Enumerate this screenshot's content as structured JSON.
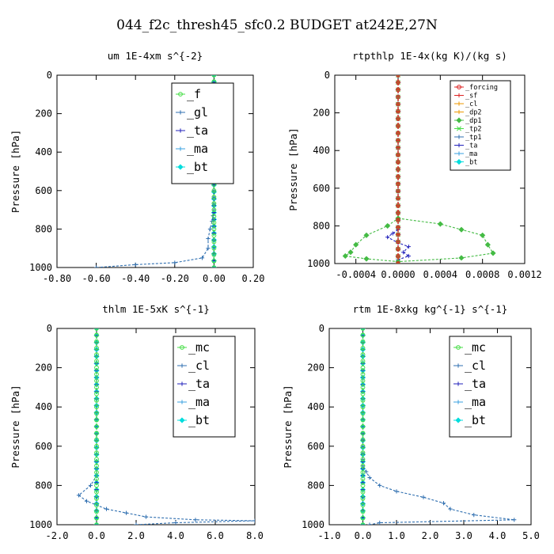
{
  "figure_title": "044_f2c_thresh45_sfc0.2  BUDGET at242E,27N",
  "chart_data": [
    {
      "type": "line",
      "title": "um  1E-4xm s^{-2}",
      "ylabel": "Pressure [hPa]",
      "xlim": [
        -0.8,
        0.2
      ],
      "ylim": [
        1000,
        0
      ],
      "xticks": [
        "-0.80",
        "-0.60",
        "-0.40",
        "-0.20",
        "0.00",
        "0.20"
      ],
      "yticks": [
        "0",
        "200",
        "400",
        "600",
        "800",
        "1000"
      ],
      "legend_position": "top-right",
      "legend_size": "large",
      "series": [
        {
          "name": "_f",
          "color": "#44dd44",
          "points": [
            [
              0.0,
              0
            ],
            [
              0.0,
              100
            ],
            [
              0.0,
              200
            ],
            [
              0.0,
              300
            ],
            [
              0.0,
              400
            ],
            [
              0.0,
              500
            ],
            [
              0.0,
              600
            ],
            [
              0.0,
              700
            ],
            [
              0.0,
              800
            ],
            [
              0.0,
              900
            ],
            [
              0.0,
              1000
            ]
          ]
        },
        {
          "name": "_gl",
          "color": "#2f6fb0",
          "points": [
            [
              0.0,
              0
            ],
            [
              0.0,
              200
            ],
            [
              0.0,
              400
            ],
            [
              0.0,
              600
            ],
            [
              0.0,
              700
            ],
            [
              -0.01,
              760
            ],
            [
              -0.02,
              800
            ],
            [
              -0.03,
              850
            ],
            [
              -0.03,
              900
            ],
            [
              -0.06,
              950
            ],
            [
              -0.2,
              975
            ],
            [
              -0.4,
              985
            ],
            [
              -0.6,
              1000
            ]
          ]
        },
        {
          "name": "_ta",
          "color": "#2222bb",
          "points": [
            [
              0.0,
              0
            ],
            [
              0.0,
              500
            ],
            [
              0.0,
              1000
            ]
          ]
        },
        {
          "name": "_ma",
          "color": "#3aa0e0",
          "points": [
            [
              0.0,
              0
            ],
            [
              0.0,
              500
            ],
            [
              0.0,
              1000
            ]
          ]
        },
        {
          "name": "_bt",
          "color": "#00dddd",
          "points": [
            [
              0.0,
              0
            ],
            [
              0.0,
              500
            ],
            [
              0.0,
              1000
            ]
          ]
        }
      ]
    },
    {
      "type": "line",
      "title": "rtpthlp  1E-4x(kg K)/(kg s)",
      "ylabel": "Pressure [hPa]",
      "xlim": [
        -0.0006,
        0.0012
      ],
      "ylim": [
        1000,
        0
      ],
      "xticks": [
        "-0.0004",
        "0.0000",
        "0.0004",
        "0.0008",
        "0.0012"
      ],
      "yticks": [
        "0",
        "200",
        "400",
        "600",
        "800",
        "1000"
      ],
      "legend_position": "top-right",
      "legend_size": "small",
      "series": [
        {
          "name": "_forcing",
          "color": "#dd2222",
          "points": [
            [
              0.0,
              0
            ],
            [
              0.0,
              500
            ],
            [
              0.0,
              1000
            ]
          ]
        },
        {
          "name": "_sf",
          "color": "#dd2222",
          "points": [
            [
              0.0,
              0
            ],
            [
              0.0,
              1000
            ]
          ]
        },
        {
          "name": "_cl",
          "color": "#ee9900",
          "points": [
            [
              0.0,
              0
            ],
            [
              0.0,
              1000
            ]
          ]
        },
        {
          "name": "_dp2",
          "color": "#ee9900",
          "points": [
            [
              0.0,
              0
            ],
            [
              0.0,
              1000
            ]
          ]
        },
        {
          "name": "_dp1",
          "color": "#44bb44",
          "points": [
            [
              0.0,
              760
            ],
            [
              0.0004,
              790
            ],
            [
              0.0008,
              850
            ],
            [
              0.00085,
              900
            ],
            [
              0.0009,
              945
            ],
            [
              0.0006,
              970
            ],
            [
              0.0,
              990
            ],
            [
              -0.0003,
              975
            ],
            [
              -0.0005,
              960
            ],
            [
              -0.00045,
              940
            ],
            [
              -0.0004,
              900
            ],
            [
              -0.0003,
              850
            ],
            [
              -0.0001,
              800
            ],
            [
              0.0,
              760
            ]
          ]
        },
        {
          "name": "_tp2",
          "color": "#44dd44",
          "points": [
            [
              0.0,
              0
            ],
            [
              0.0,
              1000
            ]
          ]
        },
        {
          "name": "_tp1",
          "color": "#2f6fb0",
          "points": [
            [
              0.0,
              0
            ],
            [
              0.0,
              1000
            ]
          ]
        },
        {
          "name": "_ta",
          "color": "#2222bb",
          "points": [
            [
              0.0,
              820
            ],
            [
              -5e-05,
              840
            ],
            [
              -0.0001,
              860
            ],
            [
              0.0,
              890
            ],
            [
              0.0001,
              910
            ],
            [
              5e-05,
              940
            ],
            [
              0.0001,
              960
            ],
            [
              0.0,
              980
            ]
          ]
        },
        {
          "name": "_ma",
          "color": "#3aa0e0",
          "points": [
            [
              0.0,
              0
            ],
            [
              0.0,
              1000
            ]
          ]
        },
        {
          "name": "_bt",
          "color": "#00dddd",
          "points": [
            [
              0.0,
              0
            ],
            [
              0.0,
              1000
            ]
          ]
        }
      ]
    },
    {
      "type": "line",
      "title": "thlm  1E-5xK s^{-1}",
      "ylabel": "Pressure [hPa]",
      "xlim": [
        -2.0,
        8.0
      ],
      "ylim": [
        1000,
        0
      ],
      "xticks": [
        "-2.0",
        "0.0",
        "2.0",
        "4.0",
        "6.0",
        "8.0"
      ],
      "yticks": [
        "0",
        "200",
        "400",
        "600",
        "800",
        "1000"
      ],
      "legend_position": "top-right",
      "legend_size": "large",
      "series": [
        {
          "name": "_mc",
          "color": "#44dd44",
          "points": [
            [
              0.0,
              0
            ],
            [
              0.0,
              200
            ],
            [
              0.0,
              400
            ],
            [
              0.0,
              600
            ],
            [
              0.0,
              800
            ],
            [
              0.0,
              1000
            ]
          ]
        },
        {
          "name": "_cl",
          "color": "#2f6fb0",
          "points": [
            [
              0.0,
              0
            ],
            [
              0.0,
              500
            ],
            [
              0.0,
              750
            ],
            [
              -0.3,
              800
            ],
            [
              -0.9,
              850
            ],
            [
              -0.5,
              880
            ],
            [
              0.5,
              920
            ],
            [
              1.5,
              940
            ],
            [
              2.5,
              960
            ],
            [
              5.0,
              975
            ],
            [
              8.0,
              980
            ],
            [
              4.0,
              990
            ],
            [
              2.0,
              1000
            ]
          ]
        },
        {
          "name": "_ta",
          "color": "#2222bb",
          "points": [
            [
              0.0,
              0
            ],
            [
              0.0,
              500
            ],
            [
              0.0,
              1000
            ]
          ]
        },
        {
          "name": "_ma",
          "color": "#3aa0e0",
          "points": [
            [
              0.0,
              0
            ],
            [
              0.0,
              500
            ],
            [
              0.0,
              1000
            ]
          ]
        },
        {
          "name": "_bt",
          "color": "#00dddd",
          "points": [
            [
              0.0,
              0
            ],
            [
              0.0,
              500
            ],
            [
              0.0,
              1000
            ]
          ]
        }
      ]
    },
    {
      "type": "line",
      "title": "rtm  1E-8xkg kg^{-1} s^{-1}",
      "ylabel": "Pressure [hPa]",
      "xlim": [
        -1.0,
        5.0
      ],
      "ylim": [
        1000,
        0
      ],
      "xticks": [
        "-1.0",
        "0.0",
        "1.0",
        "2.0",
        "3.0",
        "4.0",
        "5.0"
      ],
      "yticks": [
        "0",
        "200",
        "400",
        "600",
        "800",
        "1000"
      ],
      "legend_position": "top-right",
      "legend_size": "large",
      "series": [
        {
          "name": "_mc",
          "color": "#44dd44",
          "points": [
            [
              0.0,
              0
            ],
            [
              0.0,
              200
            ],
            [
              0.0,
              400
            ],
            [
              0.0,
              600
            ],
            [
              0.0,
              800
            ],
            [
              0.0,
              1000
            ]
          ]
        },
        {
          "name": "_cl",
          "color": "#2f6fb0",
          "points": [
            [
              0.0,
              0
            ],
            [
              0.0,
              500
            ],
            [
              0.0,
              700
            ],
            [
              0.2,
              760
            ],
            [
              0.5,
              800
            ],
            [
              1.0,
              830
            ],
            [
              1.8,
              860
            ],
            [
              2.4,
              890
            ],
            [
              2.6,
              920
            ],
            [
              3.3,
              950
            ],
            [
              4.5,
              975
            ],
            [
              0.5,
              990
            ],
            [
              0.2,
              1000
            ]
          ]
        },
        {
          "name": "_ta",
          "color": "#2222bb",
          "points": [
            [
              0.0,
              0
            ],
            [
              0.0,
              500
            ],
            [
              0.0,
              1000
            ]
          ]
        },
        {
          "name": "_ma",
          "color": "#3aa0e0",
          "points": [
            [
              0.0,
              0
            ],
            [
              0.0,
              500
            ],
            [
              0.0,
              1000
            ]
          ]
        },
        {
          "name": "_bt",
          "color": "#00dddd",
          "points": [
            [
              0.0,
              0
            ],
            [
              0.0,
              500
            ],
            [
              0.0,
              1000
            ]
          ]
        }
      ]
    }
  ]
}
